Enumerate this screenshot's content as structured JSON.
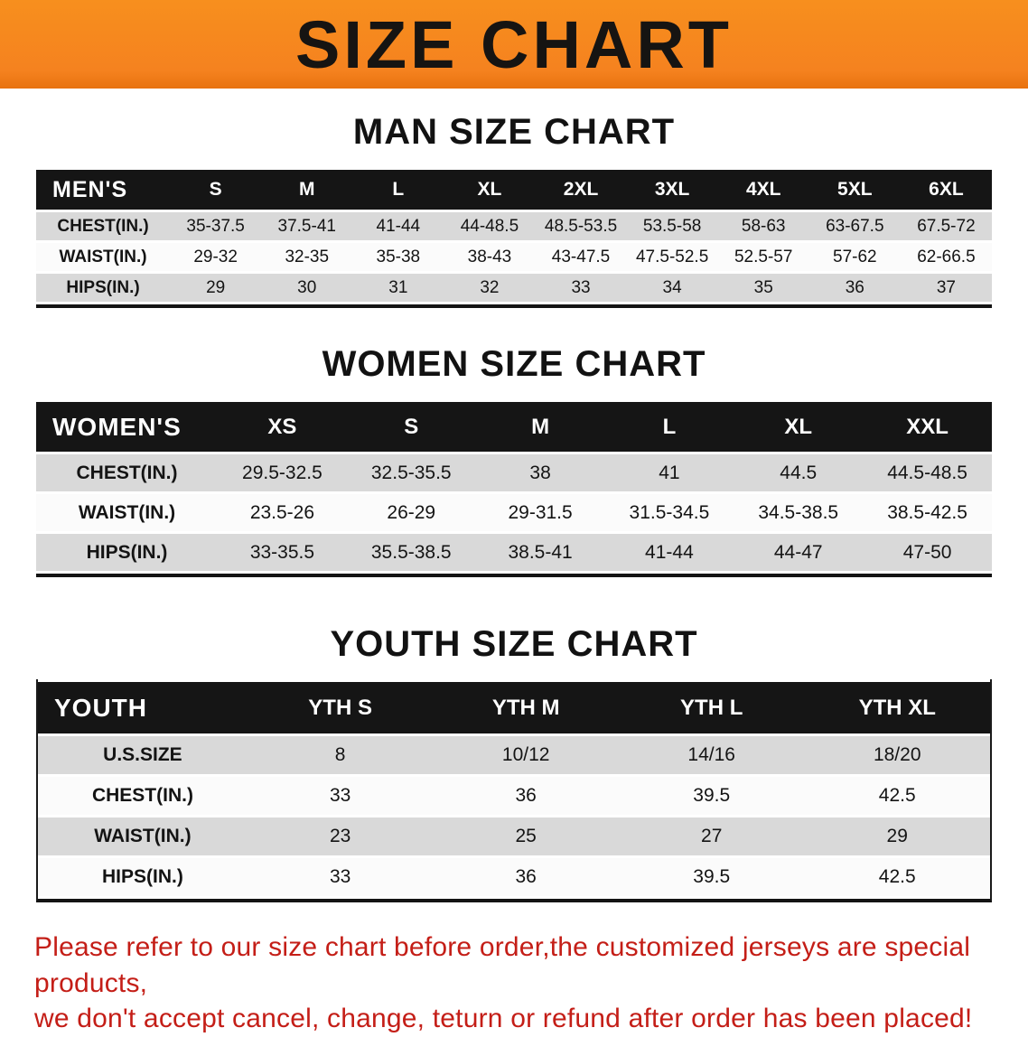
{
  "banner": {
    "title": "SIZE CHART",
    "background_color": "#f5821f",
    "text_color": "#161412"
  },
  "table_colors": {
    "header_background": "#151515",
    "header_text": "#ffffff",
    "shaded_row": "#d9d9d9",
    "plain_row": "#fbfbfb"
  },
  "sections": {
    "men": {
      "heading": "MAN SIZE CHART",
      "table": {
        "header": [
          "MEN'S",
          "S",
          "M",
          "L",
          "XL",
          "2XL",
          "3XL",
          "4XL",
          "5XL",
          "6XL"
        ],
        "rows": [
          {
            "label": "CHEST(IN.)",
            "values": [
              "35-37.5",
              "37.5-41",
              "41-44",
              "44-48.5",
              "48.5-53.5",
              "53.5-58",
              "58-63",
              "63-67.5",
              "67.5-72"
            ]
          },
          {
            "label": "WAIST(IN.)",
            "values": [
              "29-32",
              "32-35",
              "35-38",
              "38-43",
              "43-47.5",
              "47.5-52.5",
              "52.5-57",
              "57-62",
              "62-66.5"
            ]
          },
          {
            "label": "HIPS(IN.)",
            "values": [
              "29",
              "30",
              "31",
              "32",
              "33",
              "34",
              "35",
              "36",
              "37"
            ]
          }
        ]
      }
    },
    "women": {
      "heading": "WOMEN SIZE CHART",
      "table": {
        "header": [
          "WOMEN'S",
          "XS",
          "S",
          "M",
          "L",
          "XL",
          "XXL"
        ],
        "rows": [
          {
            "label": "CHEST(IN.)",
            "values": [
              "29.5-32.5",
              "32.5-35.5",
              "38",
              "41",
              "44.5",
              "44.5-48.5"
            ]
          },
          {
            "label": "WAIST(IN.)",
            "values": [
              "23.5-26",
              "26-29",
              "29-31.5",
              "31.5-34.5",
              "34.5-38.5",
              "38.5-42.5"
            ]
          },
          {
            "label": "HIPS(IN.)",
            "values": [
              "33-35.5",
              "35.5-38.5",
              "38.5-41",
              "41-44",
              "44-47",
              "47-50"
            ]
          }
        ]
      }
    },
    "youth": {
      "heading": "YOUTH SIZE CHART",
      "table": {
        "header": [
          "YOUTH",
          "YTH S",
          "YTH M",
          "YTH L",
          "YTH XL"
        ],
        "rows": [
          {
            "label": "U.S.SIZE",
            "values": [
              "8",
              "10/12",
              "14/16",
              "18/20"
            ]
          },
          {
            "label": "CHEST(IN.)",
            "values": [
              "33",
              "36",
              "39.5",
              "42.5"
            ]
          },
          {
            "label": "WAIST(IN.)",
            "values": [
              "23",
              "25",
              "27",
              "29"
            ]
          },
          {
            "label": "HIPS(IN.)",
            "values": [
              "33",
              "36",
              "39.5",
              "42.5"
            ]
          }
        ]
      }
    }
  },
  "disclaimer": {
    "line1": "Please refer to our size chart before order,the customized jerseys are special products,",
    "line2": "we don't accept cancel, change, teturn or refund after order has been placed!",
    "color": "#c41e17"
  }
}
